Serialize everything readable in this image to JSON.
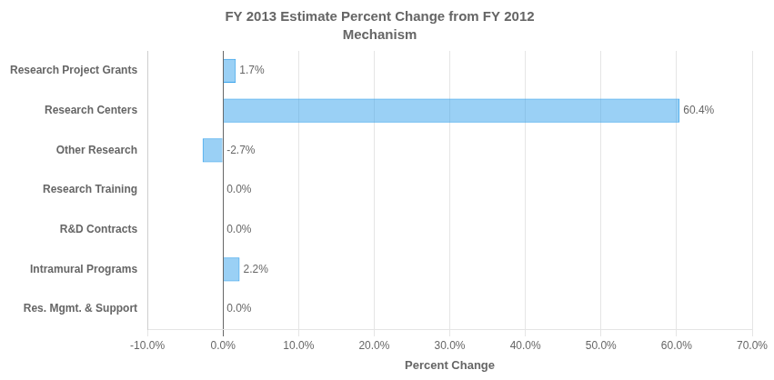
{
  "chart_data": {
    "type": "bar",
    "orientation": "horizontal",
    "title": "FY 2013 Estimate Percent Change from FY 2012",
    "subtitle": "Mechanism",
    "categories": [
      "Research Project Grants",
      "Research Centers",
      "Other Research",
      "Research Training",
      "R&D Contracts",
      "Intramural Programs",
      "Res. Mgmt. & Support"
    ],
    "values": [
      1.7,
      60.4,
      -2.7,
      0.0,
      0.0,
      2.2,
      0.0
    ],
    "value_labels": [
      "1.7%",
      "60.4%",
      "-2.7%",
      "0.0%",
      "0.0%",
      "2.2%",
      "0.0%"
    ],
    "data_labels": true,
    "xlabel": "Percent Change",
    "xlim": [
      -10.0,
      70.0
    ],
    "xticks": [
      {
        "value": -10.0,
        "label": "-10.0%"
      },
      {
        "value": 0.0,
        "label": "0.0%"
      },
      {
        "value": 10.0,
        "label": "10.0%"
      },
      {
        "value": 20.0,
        "label": "20.0%"
      },
      {
        "value": 30.0,
        "label": "30.0%"
      },
      {
        "value": 40.0,
        "label": "40.0%"
      },
      {
        "value": 50.0,
        "label": "50.0%"
      },
      {
        "value": 60.0,
        "label": "60.0%"
      },
      {
        "value": 70.0,
        "label": "70.0%"
      }
    ],
    "grid": true
  }
}
